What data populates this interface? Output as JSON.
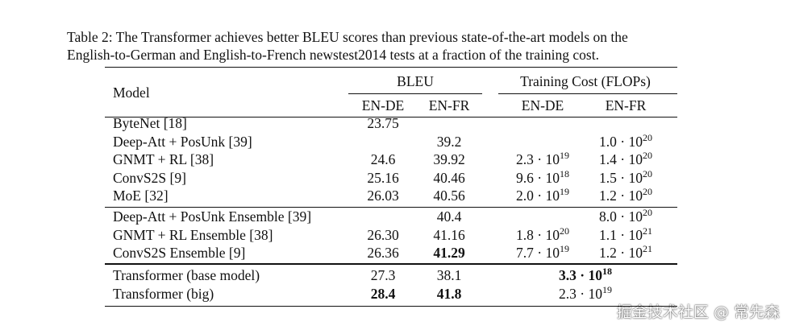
{
  "caption": [
    "Table 2: The Transformer achieves better BLEU scores than previous state-of-the-art models on the",
    "English-to-German and English-to-French newstest2014 tests at a fraction of the training cost."
  ],
  "table": {
    "header": {
      "model": "Model",
      "bleu": "BLEU",
      "cost": "Training Cost (FLOPs)",
      "bleu_sub": [
        "EN-DE",
        "EN-FR"
      ],
      "cost_sub": [
        "EN-DE",
        "EN-FR"
      ]
    },
    "groups": [
      [
        {
          "model": "ByteNet [18]",
          "bleu": [
            "23.75",
            null
          ],
          "cost": [
            null,
            null
          ]
        },
        {
          "model": "Deep-Att + PosUnk [39]",
          "bleu": [
            null,
            "39.2"
          ],
          "cost": [
            null,
            {
              "base": "1.0 · 10",
              "exp": "20"
            }
          ]
        },
        {
          "model": "GNMT + RL [38]",
          "bleu": [
            "24.6",
            "39.92"
          ],
          "cost": [
            {
              "base": "2.3 · 10",
              "exp": "19"
            },
            {
              "base": "1.4 · 10",
              "exp": "20"
            }
          ]
        },
        {
          "model": "ConvS2S [9]",
          "bleu": [
            "25.16",
            "40.46"
          ],
          "cost": [
            {
              "base": "9.6 · 10",
              "exp": "18"
            },
            {
              "base": "1.5 · 10",
              "exp": "20"
            }
          ]
        },
        {
          "model": "MoE [32]",
          "bleu": [
            "26.03",
            "40.56"
          ],
          "cost": [
            {
              "base": "2.0 · 10",
              "exp": "19"
            },
            {
              "base": "1.2 · 10",
              "exp": "20"
            }
          ]
        }
      ],
      [
        {
          "model": "Deep-Att + PosUnk Ensemble [39]",
          "bleu": [
            null,
            "40.4"
          ],
          "cost": [
            null,
            {
              "base": "8.0 · 10",
              "exp": "20"
            }
          ]
        },
        {
          "model": "GNMT + RL Ensemble [38]",
          "bleu": [
            "26.30",
            "41.16"
          ],
          "cost": [
            {
              "base": "1.8 · 10",
              "exp": "20"
            },
            {
              "base": "1.1 · 10",
              "exp": "21"
            }
          ]
        },
        {
          "model": "ConvS2S Ensemble [9]",
          "bleu": [
            "26.36",
            "41.29"
          ],
          "cost": [
            {
              "base": "7.7 · 10",
              "exp": "19"
            },
            {
              "base": "1.2 · 10",
              "exp": "21"
            }
          ],
          "bold_bleu": [
            false,
            true
          ]
        }
      ],
      [
        {
          "model": "Transformer (base model)",
          "bleu": [
            "27.3",
            "38.1"
          ],
          "cost_merged": {
            "base": "3.3 · 10",
            "exp": "18",
            "bold": true
          }
        },
        {
          "model": "Transformer (big)",
          "bleu": [
            "28.4",
            "41.8"
          ],
          "cost_merged": {
            "base": "2.3 · 10",
            "exp": "19"
          },
          "bold_bleu": [
            true,
            true
          ]
        }
      ]
    ]
  },
  "watermark": "掘金技术社区 @ 常先森"
}
